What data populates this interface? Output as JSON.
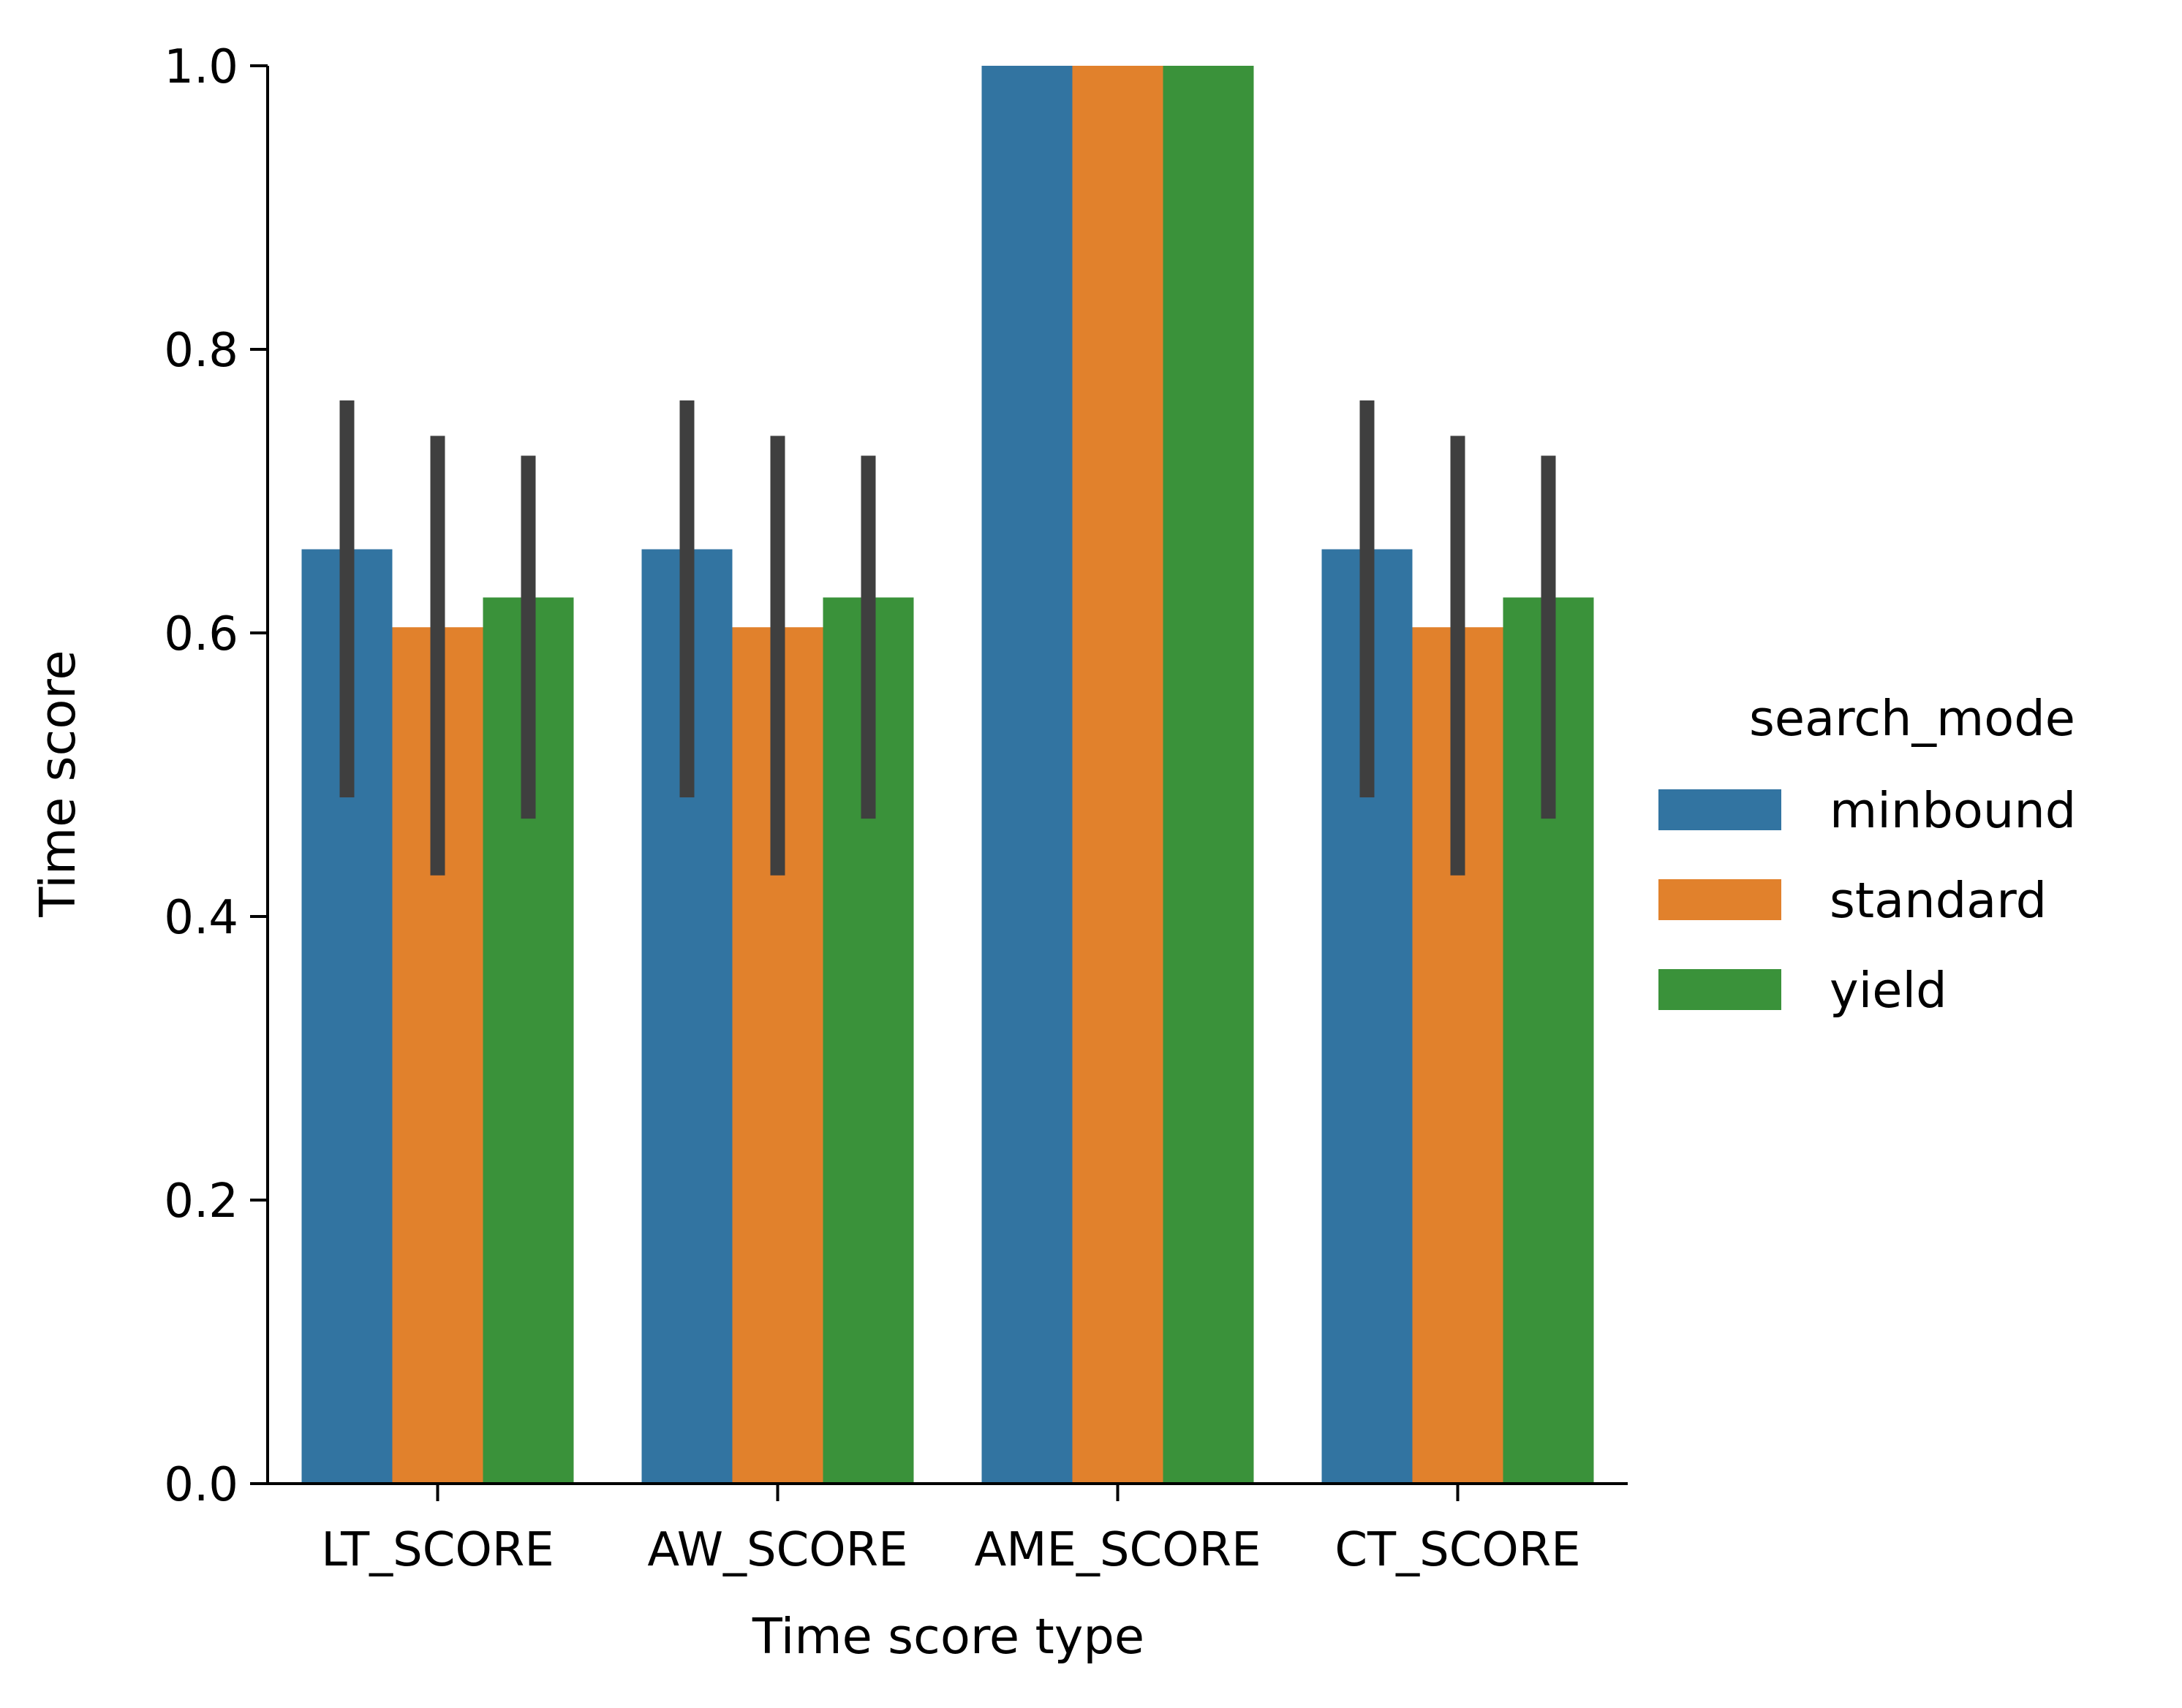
{
  "chart_data": {
    "type": "bar",
    "title": "",
    "xlabel": "Time score type",
    "ylabel": "Time score",
    "ylim": [
      0,
      1.0
    ],
    "yticks": [
      0.0,
      0.2,
      0.4,
      0.6,
      0.8,
      1.0
    ],
    "ytick_labels": [
      "0.0",
      "0.2",
      "0.4",
      "0.6",
      "0.8",
      "1.0"
    ],
    "categories": [
      "LT_SCORE",
      "AW_SCORE",
      "AME_SCORE",
      "CT_SCORE"
    ],
    "legend": {
      "title": "search_mode",
      "placement": "right"
    },
    "grid": false,
    "series": [
      {
        "name": "minbound",
        "color": "#3274a1",
        "values": [
          0.659,
          0.659,
          1.0,
          0.659
        ],
        "ci_low": [
          0.484,
          0.484,
          null,
          0.484
        ],
        "ci_high": [
          0.764,
          0.764,
          null,
          0.764
        ]
      },
      {
        "name": "standard",
        "color": "#e1812c",
        "values": [
          0.604,
          0.604,
          1.0,
          0.604
        ],
        "ci_low": [
          0.429,
          0.429,
          null,
          0.429
        ],
        "ci_high": [
          0.739,
          0.739,
          null,
          0.739
        ]
      },
      {
        "name": "yield",
        "color": "#3a923a",
        "values": [
          0.625,
          0.625,
          1.0,
          0.625
        ],
        "ci_low": [
          0.469,
          0.469,
          null,
          0.469
        ],
        "ci_high": [
          0.725,
          0.725,
          null,
          0.725
        ]
      }
    ],
    "errorbar_color": "#3f3f3f"
  }
}
